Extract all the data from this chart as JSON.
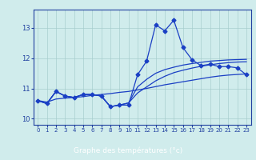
{
  "x": [
    0,
    1,
    2,
    3,
    4,
    5,
    6,
    7,
    8,
    9,
    10,
    11,
    12,
    13,
    14,
    15,
    16,
    17,
    18,
    19,
    20,
    21,
    22,
    23
  ],
  "temp_main": [
    10.6,
    10.5,
    10.9,
    10.75,
    10.7,
    10.8,
    10.8,
    10.75,
    10.4,
    10.45,
    10.45,
    11.45,
    11.9,
    13.1,
    12.9,
    13.25,
    12.35,
    11.95,
    11.75,
    11.8,
    11.72,
    11.72,
    11.68,
    11.45
  ],
  "temp_line2": [
    10.6,
    10.5,
    10.9,
    10.75,
    10.7,
    10.8,
    10.8,
    10.75,
    10.4,
    10.45,
    10.52,
    11.05,
    11.3,
    11.5,
    11.62,
    11.7,
    11.77,
    11.82,
    11.86,
    11.9,
    11.92,
    11.94,
    11.95,
    11.96
  ],
  "temp_line3": [
    10.6,
    10.5,
    10.9,
    10.75,
    10.7,
    10.8,
    10.8,
    10.75,
    10.4,
    10.45,
    10.52,
    10.85,
    11.05,
    11.25,
    11.4,
    11.52,
    11.6,
    11.67,
    11.73,
    11.78,
    11.82,
    11.85,
    11.87,
    11.88
  ],
  "temp_line4": [
    10.6,
    10.55,
    10.65,
    10.68,
    10.7,
    10.73,
    10.77,
    10.8,
    10.83,
    10.87,
    10.9,
    10.95,
    11.0,
    11.06,
    11.12,
    11.17,
    11.22,
    11.27,
    11.32,
    11.37,
    11.41,
    11.44,
    11.46,
    11.48
  ],
  "line_color": "#1a3fc4",
  "bg_color": "#d0ecec",
  "grid_color": "#a8cece",
  "axis_label_bg": "#2040a0",
  "axis_label_fg": "#ffffff",
  "tick_color": "#2040a0",
  "ylabel_color": "#2040a0",
  "xlabel": "Graphe des températures (°c)",
  "ylim": [
    9.8,
    13.6
  ],
  "xlim": [
    -0.5,
    23.5
  ],
  "yticks": [
    10,
    11,
    12,
    13
  ],
  "xticks": [
    0,
    1,
    2,
    3,
    4,
    5,
    6,
    7,
    8,
    9,
    10,
    11,
    12,
    13,
    14,
    15,
    16,
    17,
    18,
    19,
    20,
    21,
    22,
    23
  ],
  "markersize": 2.5,
  "linewidth": 0.9
}
